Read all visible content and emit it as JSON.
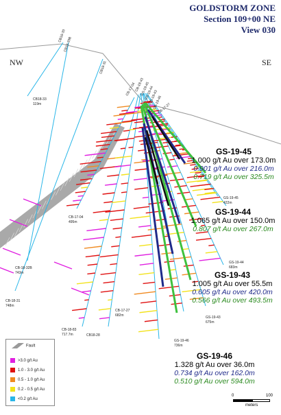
{
  "header": {
    "line1": "GOLDSTORM ZONE",
    "line2": "Section 109+00 NE",
    "line3": "View 030"
  },
  "compass": {
    "left": "NW",
    "right": "SE"
  },
  "drill_labels": {
    "cb18_33_top": "CB18-33",
    "cb18_33b_top": "CB18-33B",
    "cb18_31_top": "CB18-31",
    "cb17_04_top": "CB-17-04",
    "cb18_43_top": "CB-18-43",
    "gs19_45_top": "GS-19-45",
    "gs19_44_top": "GS-19-44",
    "gs19_43_top": "GS-19-43",
    "gs19_46_top": "GS-19-46",
    "cb17_27_top": "CB-17-27",
    "cb18_33_end": "CB18-33",
    "cb18_33_end_depth": "119m",
    "cb17_04_end": "CB-17-04",
    "cb17_04_end_depth": "495m",
    "cb18_32b_end": "CB-18-32B",
    "cb18_32b_end_depth": "743m",
    "cb18_31_end": "CB-18-31",
    "cb18_31_end_depth": "748m",
    "cb18_83_end": "CB-18-83",
    "cb18_83_end_depth": "717.7m",
    "cb18_28_end": "CB18-28",
    "cb17_27_end": "CB-17-27",
    "cb17_27_end_depth": "682m",
    "gs19_46_end": "GS-19-46",
    "gs19_46_end_depth": "736m",
    "gs19_45_end": "GS-19-45",
    "gs19_45_end_depth": "422m",
    "gs19_44_end": "GS-19-44",
    "gs19_44_end_depth": "683m",
    "gs19_43_end": "GS-19-43",
    "gs19_43_end_depth": "675m"
  },
  "annotations": [
    {
      "hole": "GS-19-45",
      "main": "1.000 g/t Au over 173.0m",
      "blue": "0.901 g/t Au over 216.0m",
      "green": "0.719 g/t Au over 325.5m"
    },
    {
      "hole": "GS-19-44",
      "main": "1.065 g/t Au over 150.0m",
      "blue": "",
      "green": "0.807 g/t Au over 267.0m"
    },
    {
      "hole": "GS-19-43",
      "main": "1.005 g/t Au over 55.5m",
      "blue": "0.605 g/t Au over 420.0m",
      "green": "0.566 g/t Au over 493.5m"
    },
    {
      "hole": "GS-19-46",
      "main": "1.328 g/t Au over 36.0m",
      "blue": "0.734 g/t Au over 162.0m",
      "green": "0.510 g/t Au over 594.0m"
    }
  ],
  "legend": {
    "fault_label": "Fault",
    "items": [
      {
        "label": ">3.0 g/t Au",
        "color": "#e020e0"
      },
      {
        "label": "1.0 - 3.0 g/t Au",
        "color": "#e01010"
      },
      {
        "label": "0.5 - 1.0 g/t Au",
        "color": "#f08a20"
      },
      {
        "label": "0.2 - 0.5 g/t Au",
        "color": "#f2e21a"
      },
      {
        "label": "<0.2 g/t Au",
        "color": "#29b6e8"
      }
    ]
  },
  "scale": {
    "zero": "0",
    "max": "100",
    "unit": "meters"
  },
  "colors": {
    "title": "#1f2a6b",
    "interval_blue": "#1f2a8a",
    "interval_green": "#2a8a1f",
    "fault": "#9a9a9a",
    "bar_red": "#e01010",
    "bar_magenta": "#e020e0",
    "bar_orange": "#f08a20",
    "bar_yellow": "#f2e21a",
    "trace_blue": "#29b6e8"
  }
}
